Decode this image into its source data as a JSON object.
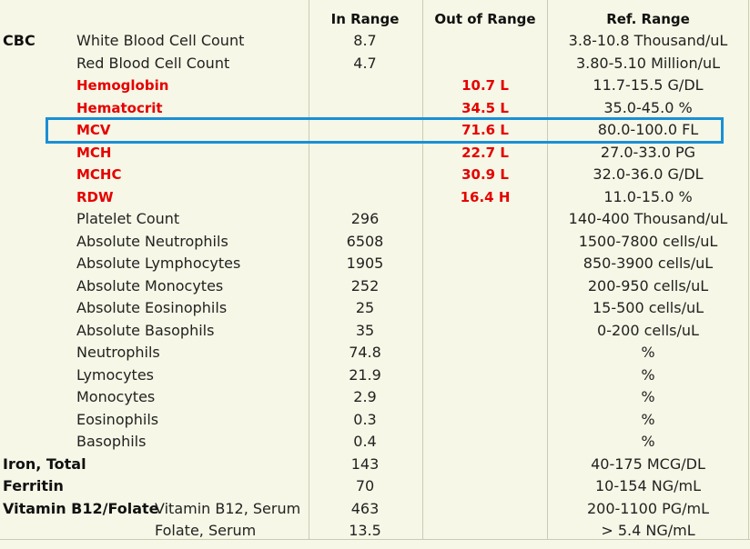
{
  "colors": {
    "background": "#f6f7e6",
    "flag": "#e60000",
    "highlight": "#1a8fd6",
    "grid": "#c9cbb4"
  },
  "headers": {
    "in_range": "In Range",
    "out_of_range": "Out of Range",
    "ref_range": "Ref. Range"
  },
  "rows": [
    {
      "group": "CBC",
      "name": "White Blood Cell Count",
      "in": "8.7",
      "out": "",
      "ref": "3.8-10.8  Thousand/uL",
      "flag": false
    },
    {
      "group": "",
      "name": "Red Blood Cell Count",
      "in": "4.7",
      "out": "",
      "ref": "3.80-5.10  Million/uL",
      "flag": false
    },
    {
      "group": "",
      "name": "Hemoglobin",
      "in": "",
      "out": "10.7 L",
      "ref": "11.7-15.5  G/DL",
      "flag": true
    },
    {
      "group": "",
      "name": "Hematocrit",
      "in": "",
      "out": "34.5 L",
      "ref": "35.0-45.0  %",
      "flag": true
    },
    {
      "group": "",
      "name": "MCV",
      "in": "",
      "out": "71.6 L",
      "ref": "80.0-100.0  FL",
      "flag": true
    },
    {
      "group": "",
      "name": "MCH",
      "in": "",
      "out": "22.7 L",
      "ref": "27.0-33.0  PG",
      "flag": true
    },
    {
      "group": "",
      "name": "MCHC",
      "in": "",
      "out": "30.9 L",
      "ref": "32.0-36.0  G/DL",
      "flag": true
    },
    {
      "group": "",
      "name": "RDW",
      "in": "",
      "out": "16.4 H",
      "ref": "11.0-15.0  %",
      "flag": true
    },
    {
      "group": "",
      "name": "Platelet Count",
      "in": "296",
      "out": "",
      "ref": "140-400  Thousand/uL",
      "flag": false
    },
    {
      "group": "",
      "name": "Absolute Neutrophils",
      "in": "6508",
      "out": "",
      "ref": "1500-7800  cells/uL",
      "flag": false
    },
    {
      "group": "",
      "name": "Absolute Lymphocytes",
      "in": "1905",
      "out": "",
      "ref": "850-3900  cells/uL",
      "flag": false
    },
    {
      "group": "",
      "name": "Absolute Monocytes",
      "in": "252",
      "out": "",
      "ref": "200-950  cells/uL",
      "flag": false
    },
    {
      "group": "",
      "name": "Absolute Eosinophils",
      "in": "25",
      "out": "",
      "ref": "15-500  cells/uL",
      "flag": false
    },
    {
      "group": "",
      "name": "Absolute Basophils",
      "in": "35",
      "out": "",
      "ref": "0-200  cells/uL",
      "flag": false
    },
    {
      "group": "",
      "name": "Neutrophils",
      "in": "74.8",
      "out": "",
      "ref": "%",
      "flag": false
    },
    {
      "group": "",
      "name": "Lymocytes",
      "in": "21.9",
      "out": "",
      "ref": "%",
      "flag": false
    },
    {
      "group": "",
      "name": "Monocytes",
      "in": "2.9",
      "out": "",
      "ref": "%",
      "flag": false
    },
    {
      "group": "",
      "name": "Eosinophils",
      "in": "0.3",
      "out": "",
      "ref": "%",
      "flag": false
    },
    {
      "group": "",
      "name": "Basophils",
      "in": "0.4",
      "out": "",
      "ref": "%",
      "flag": false
    },
    {
      "group": "Iron, Total",
      "name": "",
      "in": "143",
      "out": "",
      "ref": "40-175  MCG/DL",
      "flag": false
    },
    {
      "group": "Ferritin",
      "name": "",
      "in": "70",
      "out": "",
      "ref": "10-154  NG/mL",
      "flag": false
    },
    {
      "group": "Vitamin  B12/Folate",
      "name": "Vitamin B12, Serum",
      "in": "463",
      "out": "",
      "ref": "200-1100  PG/mL",
      "flag": false
    },
    {
      "group": "",
      "name": "Folate, Serum",
      "in": "13.5",
      "out": "",
      "ref": "> 5.4  NG/mL",
      "flag": false
    }
  ]
}
